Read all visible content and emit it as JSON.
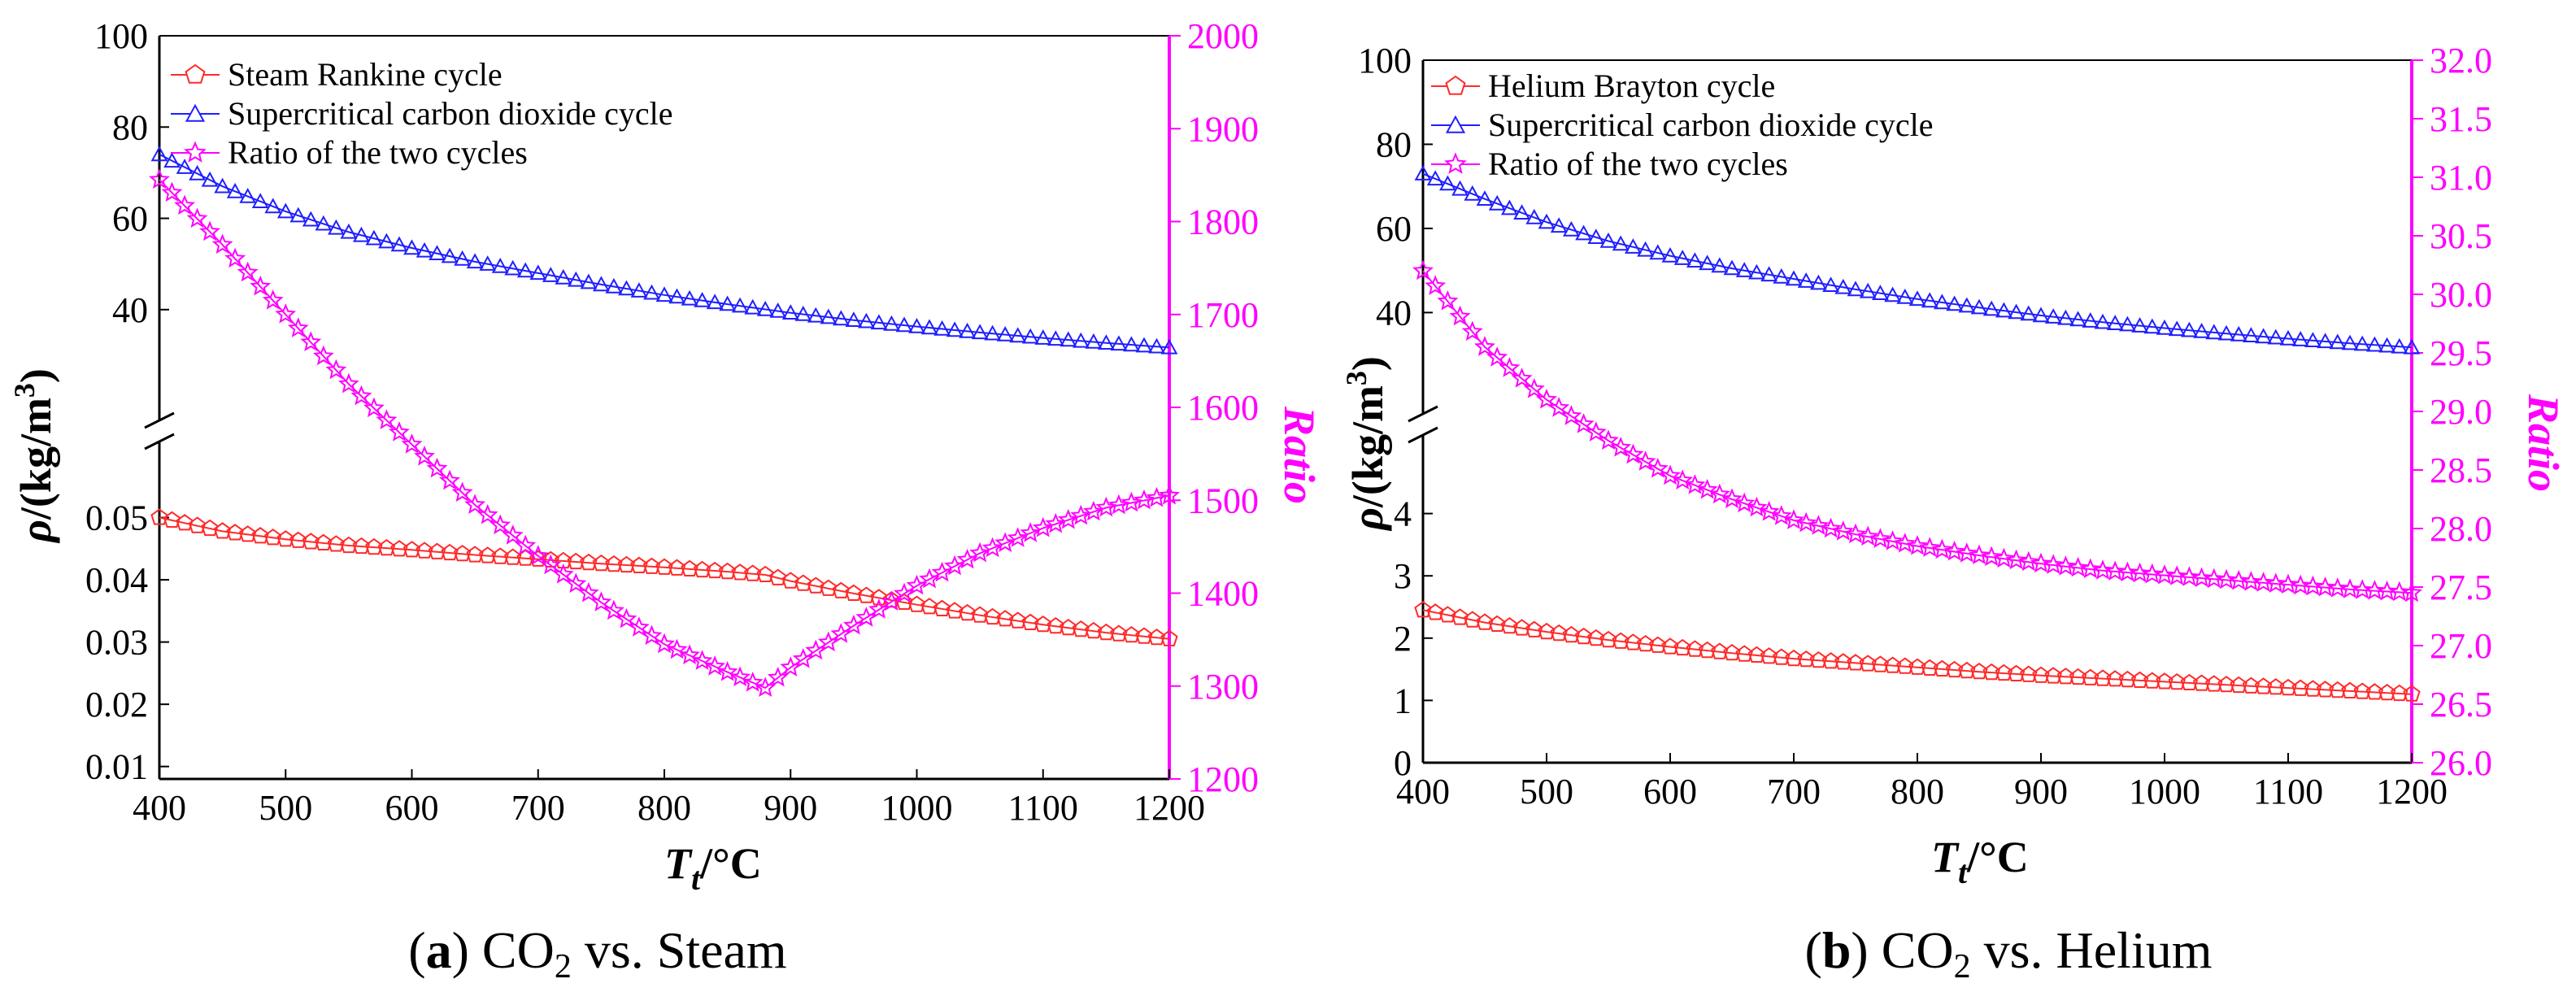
{
  "colors": {
    "steam": "#ff2a2a",
    "co2": "#1f1fff",
    "ratio": "#ff00ff",
    "axis": "#000000",
    "right_axis": "#ff00ff"
  },
  "chart_data": [
    {
      "id": "a",
      "type": "line",
      "caption": {
        "letter": "a",
        "formula": "CO",
        "subscript": "2",
        "rest": " vs. Steam"
      },
      "xlabel": "T",
      "xlabel_sub": "t",
      "xlabel_unit": "/°C",
      "ylabel_rho": "ρ",
      "ylabel_unit": "/(kg/m",
      "ylabel_sup": "3",
      "ylabel_close": ")",
      "y2label": "Ratio",
      "xlim": [
        400,
        1200
      ],
      "x_ticks": [
        "400",
        "500",
        "600",
        "700",
        "800",
        "900",
        "1000",
        "1100",
        "1200"
      ],
      "upper_ylim": [
        25,
        100
      ],
      "upper_ticks": [
        "40",
        "60",
        "80",
        "100"
      ],
      "lower_ylim": [
        0.008,
        0.06
      ],
      "lower_ticks": [
        "0.01",
        "0.02",
        "0.03",
        "0.04",
        "0.05"
      ],
      "y2lim": [
        1200,
        2000
      ],
      "y2_ticks": [
        "1200",
        "1300",
        "1400",
        "1500",
        "1600",
        "1700",
        "1800",
        "1900",
        "2000"
      ],
      "legend": [
        "Steam Rankine cycle",
        "Supercritical carbon dioxide cycle",
        "Ratio of the two cycles"
      ],
      "series": [
        {
          "name": "Supercritical carbon dioxide cycle",
          "panel": "upper",
          "marker": "triangle",
          "x": [
            400,
            450,
            500,
            550,
            600,
            650,
            700,
            750,
            800,
            850,
            900,
            950,
            1000,
            1050,
            1100,
            1150,
            1200
          ],
          "values": [
            74,
            67,
            61.5,
            57,
            53.5,
            50.5,
            48,
            45.5,
            43.2,
            41.2,
            39.3,
            37.7,
            36.3,
            35,
            33.8,
            32.7,
            31.7
          ]
        },
        {
          "name": "Steam Rankine cycle",
          "panel": "lower",
          "marker": "pentagon",
          "x": [
            400,
            450,
            500,
            550,
            600,
            650,
            700,
            750,
            800,
            850,
            880,
            900,
            950,
            1000,
            1050,
            1100,
            1150,
            1200
          ],
          "values": [
            0.05,
            0.0478,
            0.0465,
            0.0455,
            0.0448,
            0.044,
            0.0433,
            0.0426,
            0.042,
            0.0413,
            0.0408,
            0.0398,
            0.0378,
            0.036,
            0.0343,
            0.0328,
            0.0315,
            0.0305
          ]
        },
        {
          "name": "Ratio of the two cycles",
          "panel": "right",
          "marker": "star",
          "x": [
            400,
            450,
            500,
            550,
            600,
            650,
            700,
            750,
            800,
            850,
            880,
            900,
            950,
            1000,
            1050,
            1100,
            1150,
            1200
          ],
          "values": [
            1845,
            1775,
            1700,
            1625,
            1560,
            1495,
            1440,
            1390,
            1345,
            1315,
            1298,
            1320,
            1365,
            1408,
            1443,
            1470,
            1492,
            1505
          ]
        }
      ]
    },
    {
      "id": "b",
      "type": "line",
      "caption": {
        "letter": "b",
        "formula": "CO",
        "subscript": "2",
        "rest": " vs. Helium"
      },
      "xlabel": "T",
      "xlabel_sub": "t",
      "xlabel_unit": "/°C",
      "ylabel_rho": "ρ",
      "ylabel_unit": "/(kg/m",
      "ylabel_sup": "3",
      "ylabel_close": ")",
      "y2label": "Ratio",
      "xlim": [
        400,
        1200
      ],
      "x_ticks": [
        "400",
        "500",
        "600",
        "700",
        "800",
        "900",
        "1000",
        "1100",
        "1200"
      ],
      "upper_ylim": [
        25,
        100
      ],
      "upper_ticks": [
        "40",
        "60",
        "80",
        "100"
      ],
      "lower_ylim": [
        0,
        5
      ],
      "lower_ticks": [
        "0",
        "1",
        "2",
        "3",
        "4"
      ],
      "y2lim": [
        26.0,
        32.0
      ],
      "y2_ticks": [
        "26.0",
        "26.5",
        "27.0",
        "27.5",
        "28.0",
        "28.5",
        "29.0",
        "29.5",
        "30.0",
        "30.5",
        "31.0",
        "31.5",
        "32.0"
      ],
      "legend": [
        "Helium Brayton cycle",
        "Supercritical carbon dioxide cycle",
        "Ratio of the two cycles"
      ],
      "series": [
        {
          "name": "Supercritical carbon dioxide cycle",
          "panel": "upper",
          "marker": "triangle",
          "x": [
            400,
            450,
            500,
            550,
            600,
            650,
            700,
            750,
            800,
            850,
            900,
            950,
            1000,
            1050,
            1100,
            1150,
            1200
          ],
          "values": [
            73,
            67,
            61.5,
            57,
            53.5,
            50.5,
            48,
            45.5,
            43.2,
            41.2,
            39.3,
            37.7,
            36.3,
            35,
            33.8,
            32.7,
            31.7
          ]
        },
        {
          "name": "Helium Brayton cycle",
          "panel": "lower",
          "marker": "pentagon",
          "x": [
            400,
            450,
            500,
            550,
            600,
            650,
            700,
            750,
            800,
            850,
            900,
            950,
            1000,
            1050,
            1100,
            1150,
            1200
          ],
          "values": [
            2.45,
            2.25,
            2.1,
            1.97,
            1.86,
            1.76,
            1.67,
            1.6,
            1.53,
            1.46,
            1.4,
            1.35,
            1.3,
            1.25,
            1.2,
            1.15,
            1.1
          ]
        },
        {
          "name": "Ratio of the two cycles",
          "panel": "right",
          "marker": "star",
          "x": [
            400,
            450,
            500,
            550,
            600,
            650,
            700,
            750,
            800,
            850,
            900,
            950,
            1000,
            1050,
            1100,
            1150,
            1200
          ],
          "values": [
            30.2,
            29.55,
            29.1,
            28.75,
            28.45,
            28.25,
            28.07,
            27.95,
            27.85,
            27.77,
            27.7,
            27.64,
            27.6,
            27.56,
            27.52,
            27.48,
            27.45
          ]
        }
      ]
    }
  ]
}
